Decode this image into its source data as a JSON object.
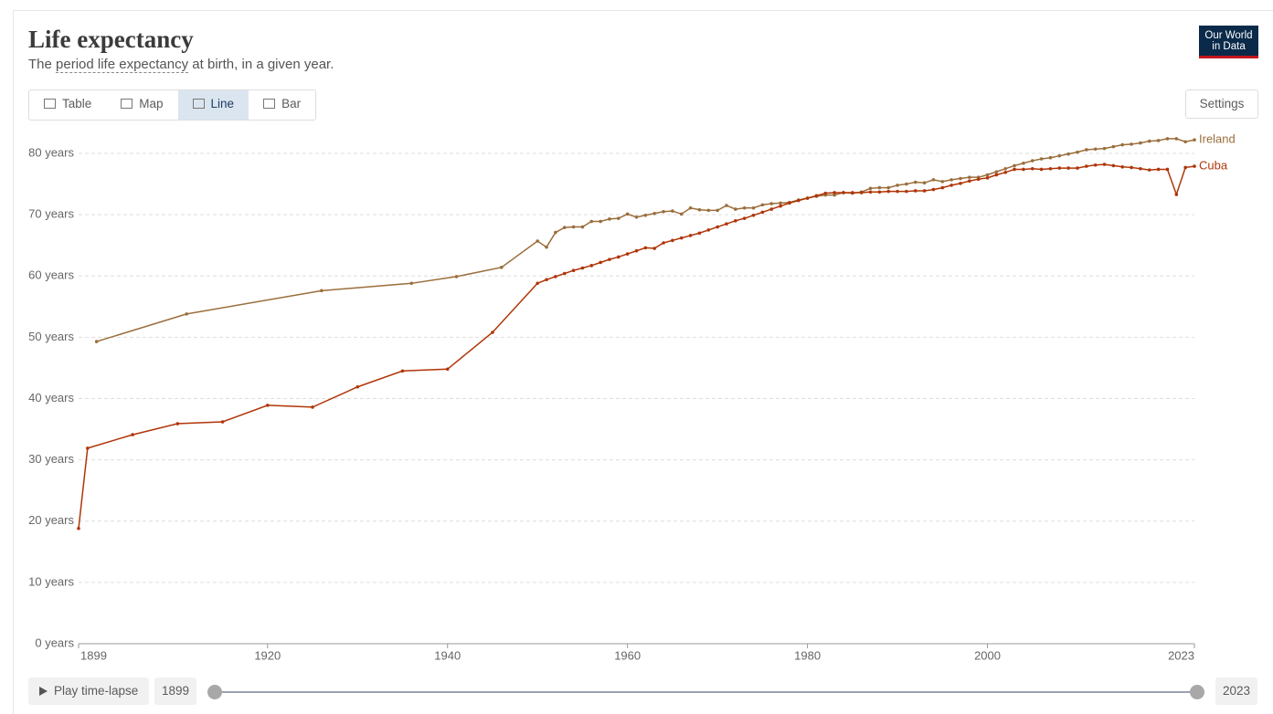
{
  "logo": {
    "line1": "Our World",
    "line2": "in Data"
  },
  "tabs": [
    "Table",
    "Map",
    "Line",
    "Bar"
  ],
  "active_tab": "Line",
  "settings": "Settings",
  "timeline": {
    "play": "Play time-lapse",
    "start": 1899,
    "end": 2023
  },
  "chart_data": {
    "type": "line",
    "title": "Life expectancy",
    "subtitle": {
      "before": "The",
      "link": "period life expectancy",
      "after": "at birth, in a given year."
    },
    "xlim": [
      1899,
      2023
    ],
    "xticks": [
      1899,
      1920,
      1940,
      1960,
      1980,
      2000,
      2023
    ],
    "ylim": [
      0,
      80
    ],
    "yticks": [
      {
        "value": 0,
        "label": "0 years"
      },
      {
        "value": 10,
        "label": "10 years"
      },
      {
        "value": 20,
        "label": "20 years"
      },
      {
        "value": 30,
        "label": "30 years"
      },
      {
        "value": 40,
        "label": "40 years"
      },
      {
        "value": 50,
        "label": "50 years"
      },
      {
        "value": 60,
        "label": "60 years"
      },
      {
        "value": 70,
        "label": "70 years"
      },
      {
        "value": 80,
        "label": "80 years"
      }
    ],
    "grid": true,
    "series": [
      {
        "name": "Ireland",
        "color": "#9a6e3c",
        "x": [
          1901,
          1911,
          1926,
          1936,
          1941,
          1946,
          1950,
          1951,
          1952,
          1953,
          1954,
          1955,
          1956,
          1957,
          1958,
          1959,
          1960,
          1961,
          1962,
          1963,
          1964,
          1965,
          1966,
          1967,
          1968,
          1969,
          1970,
          1971,
          1972,
          1973,
          1974,
          1975,
          1976,
          1977,
          1978,
          1979,
          1980,
          1981,
          1982,
          1983,
          1984,
          1985,
          1986,
          1987,
          1988,
          1989,
          1990,
          1991,
          1992,
          1993,
          1994,
          1995,
          1996,
          1997,
          1998,
          1999,
          2000,
          2001,
          2002,
          2003,
          2004,
          2005,
          2006,
          2007,
          2008,
          2009,
          2010,
          2011,
          2012,
          2013,
          2014,
          2015,
          2016,
          2017,
          2018,
          2019,
          2020,
          2021,
          2022,
          2023
        ],
        "values": [
          49.3,
          53.8,
          57.6,
          58.8,
          59.9,
          61.4,
          65.7,
          64.7,
          67.1,
          67.9,
          68.0,
          68.0,
          68.9,
          68.9,
          69.3,
          69.4,
          70.1,
          69.6,
          69.9,
          70.2,
          70.5,
          70.6,
          70.1,
          71.1,
          70.8,
          70.7,
          70.7,
          71.5,
          70.9,
          71.1,
          71.1,
          71.6,
          71.8,
          71.9,
          72.0,
          72.4,
          72.7,
          73.0,
          73.2,
          73.2,
          73.6,
          73.5,
          73.7,
          74.3,
          74.4,
          74.4,
          74.8,
          75.0,
          75.3,
          75.2,
          75.7,
          75.4,
          75.7,
          75.9,
          76.1,
          76.1,
          76.5,
          77.0,
          77.5,
          78.0,
          78.4,
          78.8,
          79.1,
          79.3,
          79.6,
          79.9,
          80.2,
          80.6,
          80.7,
          80.8,
          81.1,
          81.4,
          81.5,
          81.7,
          82.0,
          82.1,
          82.4,
          82.4,
          81.9,
          82.2
        ]
      },
      {
        "name": "Cuba",
        "color": "#b03508",
        "x": [
          1899,
          1900,
          1905,
          1910,
          1915,
          1920,
          1925,
          1930,
          1935,
          1940,
          1945,
          1950,
          1951,
          1952,
          1953,
          1954,
          1955,
          1956,
          1957,
          1958,
          1959,
          1960,
          1961,
          1962,
          1963,
          1964,
          1965,
          1966,
          1967,
          1968,
          1969,
          1970,
          1971,
          1972,
          1973,
          1974,
          1975,
          1976,
          1977,
          1978,
          1979,
          1980,
          1981,
          1982,
          1983,
          1984,
          1985,
          1986,
          1987,
          1988,
          1989,
          1990,
          1991,
          1992,
          1993,
          1994,
          1995,
          1996,
          1997,
          1998,
          1999,
          2000,
          2001,
          2002,
          2003,
          2004,
          2005,
          2006,
          2007,
          2008,
          2009,
          2010,
          2011,
          2012,
          2013,
          2014,
          2015,
          2016,
          2017,
          2018,
          2019,
          2020,
          2021,
          2022,
          2023
        ],
        "values": [
          18.8,
          31.9,
          34.1,
          35.9,
          36.2,
          38.9,
          38.6,
          41.9,
          44.5,
          44.8,
          50.8,
          58.8,
          59.4,
          59.9,
          60.4,
          60.9,
          61.3,
          61.7,
          62.2,
          62.7,
          63.1,
          63.6,
          64.1,
          64.6,
          64.5,
          65.4,
          65.8,
          66.2,
          66.6,
          67.0,
          67.5,
          68.0,
          68.5,
          69.0,
          69.4,
          69.9,
          70.4,
          70.9,
          71.4,
          71.9,
          72.3,
          72.7,
          73.1,
          73.5,
          73.6,
          73.6,
          73.6,
          73.6,
          73.7,
          73.7,
          73.8,
          73.8,
          73.8,
          73.9,
          73.9,
          74.1,
          74.4,
          74.8,
          75.1,
          75.5,
          75.8,
          76.0,
          76.5,
          76.9,
          77.4,
          77.4,
          77.5,
          77.4,
          77.5,
          77.6,
          77.6,
          77.6,
          77.9,
          78.1,
          78.2,
          78.0,
          77.8,
          77.7,
          77.5,
          77.3,
          77.4,
          77.4,
          73.3,
          77.7,
          77.9
        ]
      }
    ]
  }
}
